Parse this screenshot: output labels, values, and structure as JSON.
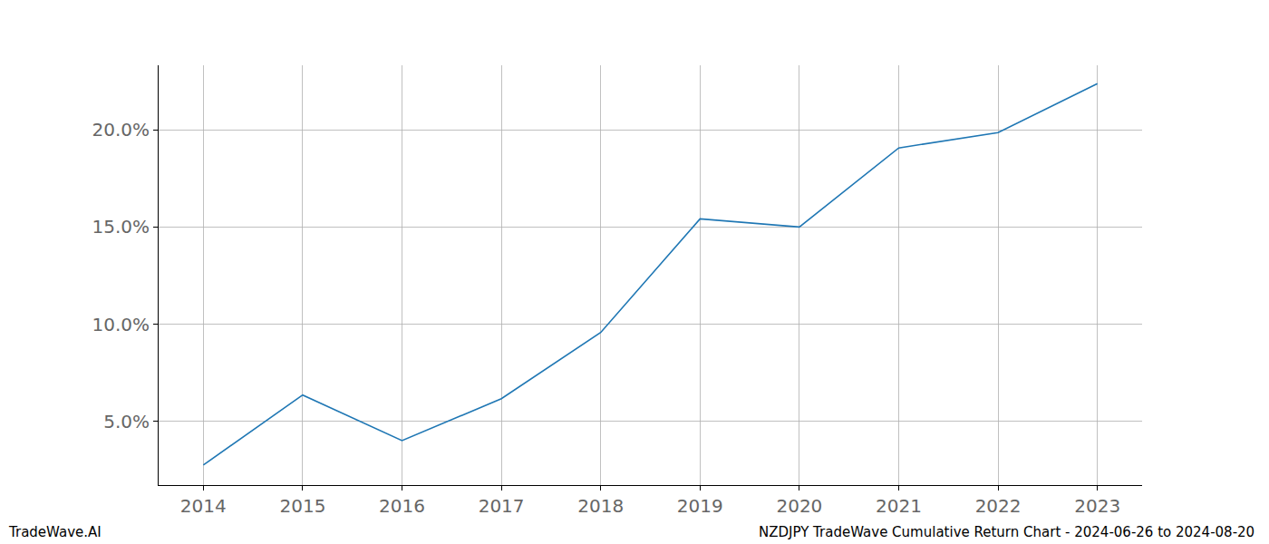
{
  "chart_data": {
    "type": "line",
    "x": [
      2014,
      2015,
      2016,
      2017,
      2018,
      2019,
      2020,
      2021,
      2022,
      2023
    ],
    "values": [
      2.76,
      6.36,
      4.02,
      6.17,
      9.58,
      15.42,
      15.0,
      19.07,
      19.86,
      22.38
    ],
    "color": "#1f77b4",
    "line_style": "solid",
    "xlim": [
      2013.55,
      2023.45
    ],
    "xticks": [
      2014,
      2015,
      2016,
      2017,
      2018,
      2019,
      2020,
      2021,
      2022,
      2023
    ],
    "ylim": [
      1.73,
      23.32
    ],
    "yticks": [
      {
        "value": 5,
        "label": "5.0%"
      },
      {
        "value": 10,
        "label": "10.0%"
      },
      {
        "value": 15,
        "label": "15.0%"
      },
      {
        "value": 20,
        "label": "20.0%"
      }
    ],
    "grid": true,
    "annotations": [
      "TradeWave.AI",
      "NZDJPY TradeWave Cumulative Return Chart - 2024-06-26 to 2024-08-20"
    ]
  }
}
